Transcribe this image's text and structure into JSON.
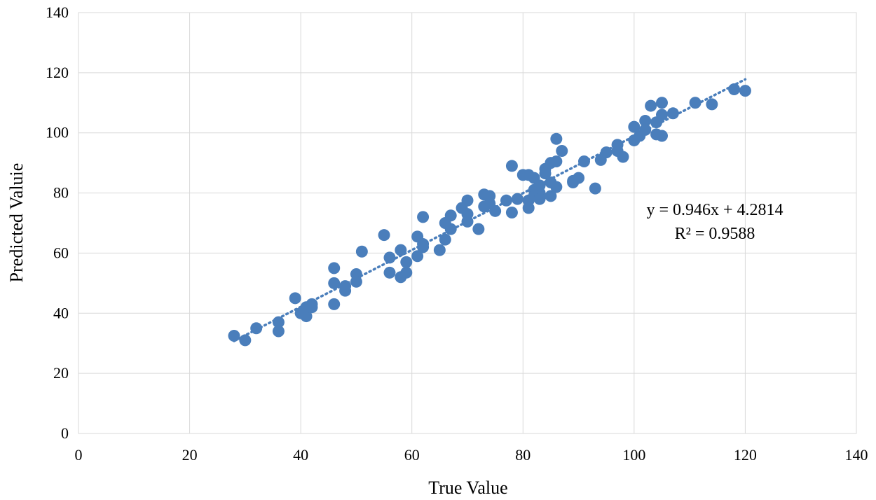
{
  "chart_data": {
    "type": "scatter",
    "title": "",
    "xlabel": "True Value",
    "ylabel": "Predicted Valuie",
    "xlim": [
      0,
      140
    ],
    "ylim": [
      0,
      140
    ],
    "xticks": [
      0,
      20,
      40,
      60,
      80,
      100,
      120,
      140
    ],
    "yticks": [
      0,
      20,
      40,
      60,
      80,
      100,
      120,
      140
    ],
    "grid": true,
    "marker_color": "#4a7ebb",
    "trendline": {
      "type": "linear",
      "slope": 0.946,
      "intercept": 4.2814,
      "x_range": [
        28,
        120
      ],
      "style": "dotted",
      "color": "#4a7ebb",
      "equation_label": "y = 0.946x + 4.2814",
      "r2_label": "R² = 0.9588"
    },
    "points": [
      [
        28,
        32.5
      ],
      [
        30,
        31
      ],
      [
        32,
        35
      ],
      [
        36,
        37
      ],
      [
        36,
        34
      ],
      [
        39,
        45
      ],
      [
        40,
        40
      ],
      [
        41,
        39
      ],
      [
        41,
        42
      ],
      [
        42,
        43
      ],
      [
        42,
        42
      ],
      [
        46,
        55
      ],
      [
        46,
        50
      ],
      [
        46,
        43
      ],
      [
        48,
        49
      ],
      [
        48,
        47.5
      ],
      [
        50,
        53
      ],
      [
        50,
        50.5
      ],
      [
        51,
        60.5
      ],
      [
        55,
        66
      ],
      [
        56,
        58.5
      ],
      [
        56,
        53.5
      ],
      [
        58,
        61
      ],
      [
        58,
        52
      ],
      [
        59,
        57
      ],
      [
        59,
        53.5
      ],
      [
        61,
        59
      ],
      [
        61,
        65.5
      ],
      [
        62,
        63
      ],
      [
        62,
        62
      ],
      [
        62,
        72
      ],
      [
        65,
        61
      ],
      [
        66,
        70
      ],
      [
        66,
        64.5
      ],
      [
        67,
        72.5
      ],
      [
        67,
        68
      ],
      [
        69,
        75
      ],
      [
        70,
        77.5
      ],
      [
        70,
        70.5
      ],
      [
        70,
        73
      ],
      [
        72,
        68
      ],
      [
        73,
        79.5
      ],
      [
        73,
        75.5
      ],
      [
        74,
        79
      ],
      [
        74,
        76.5
      ],
      [
        75,
        74
      ],
      [
        77,
        77.5
      ],
      [
        78,
        89
      ],
      [
        78,
        73.5
      ],
      [
        79,
        78
      ],
      [
        80,
        86
      ],
      [
        81,
        86
      ],
      [
        81,
        75
      ],
      [
        81,
        77.5
      ],
      [
        82,
        85
      ],
      [
        82,
        81
      ],
      [
        82,
        79
      ],
      [
        83,
        80
      ],
      [
        83,
        78
      ],
      [
        83,
        82.5
      ],
      [
        84,
        88
      ],
      [
        84,
        86.5
      ],
      [
        85,
        90
      ],
      [
        85,
        83.5
      ],
      [
        85,
        79
      ],
      [
        86,
        98
      ],
      [
        86,
        90.5
      ],
      [
        86,
        82
      ],
      [
        87,
        94
      ],
      [
        89,
        84
      ],
      [
        89,
        83.5
      ],
      [
        90,
        85
      ],
      [
        91,
        90.5
      ],
      [
        93,
        81.5
      ],
      [
        94,
        91
      ],
      [
        95,
        93.5
      ],
      [
        97,
        96
      ],
      [
        97,
        94
      ],
      [
        98,
        92
      ],
      [
        100,
        102
      ],
      [
        100,
        97.5
      ],
      [
        101,
        99
      ],
      [
        102,
        104
      ],
      [
        102,
        101
      ],
      [
        103,
        109
      ],
      [
        104,
        103.5
      ],
      [
        104,
        99.5
      ],
      [
        105,
        110
      ],
      [
        105,
        106
      ],
      [
        105,
        99
      ],
      [
        107,
        106.5
      ],
      [
        111,
        110
      ],
      [
        114,
        109.5
      ],
      [
        118,
        114.5
      ],
      [
        120,
        114
      ]
    ]
  }
}
